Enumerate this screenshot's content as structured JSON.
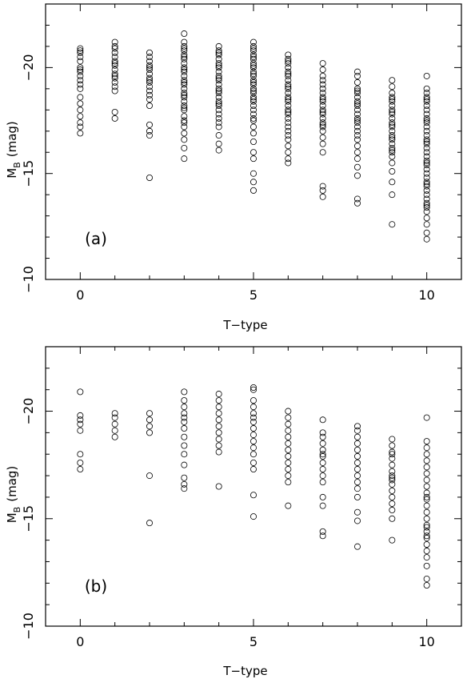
{
  "chart_data": [
    {
      "type": "scatter",
      "panel_label": "(a)",
      "xlabel": "T−type",
      "ylabel_main": "M",
      "ylabel_sub": "B",
      "ylabel_unit": "(mag)",
      "xlim": [
        -1,
        11
      ],
      "ylim": [
        -10,
        -23
      ],
      "xticks": [
        0,
        5,
        10
      ],
      "yticks": [
        -20,
        -15,
        -10
      ],
      "xtick_labels": [
        "0",
        "5",
        "10"
      ],
      "ytick_labels": [
        "−20",
        "−15",
        "−10"
      ],
      "minor_step_x": 1,
      "minor_step_y": 1,
      "grid": false,
      "points": [
        {
          "x": 0,
          "y": [
            -20.9,
            -20.8,
            -20.5,
            -20.3,
            -20.0,
            -19.9,
            -19.6,
            -19.4,
            -19.2,
            -19.0,
            -18.6,
            -18.3,
            -18.0,
            -17.7,
            -17.4,
            -17.2,
            -16.9,
            -20.7,
            -19.8
          ]
        },
        {
          "x": 1,
          "y": [
            -21.2,
            -21.0,
            -20.7,
            -20.5,
            -20.3,
            -20.1,
            -19.9,
            -19.7,
            -19.5,
            -19.3,
            -19.1,
            -18.9,
            -17.9,
            -17.6,
            -20.9,
            -20.2,
            -19.6
          ]
        },
        {
          "x": 2,
          "y": [
            -20.7,
            -20.5,
            -20.3,
            -20.1,
            -19.9,
            -19.7,
            -19.5,
            -19.3,
            -19.1,
            -18.9,
            -18.7,
            -18.5,
            -18.2,
            -17.3,
            -17.0,
            -16.8,
            -14.8,
            -20.0,
            -19.4
          ]
        },
        {
          "x": 3,
          "y": [
            -21.6,
            -21.2,
            -21.0,
            -20.8,
            -20.6,
            -20.4,
            -20.2,
            -20.0,
            -19.8,
            -19.6,
            -19.4,
            -19.2,
            -19.0,
            -18.8,
            -18.6,
            -18.4,
            -18.2,
            -18.0,
            -17.7,
            -17.5,
            -17.2,
            -16.9,
            -16.6,
            -16.2,
            -15.7,
            -20.9,
            -20.5,
            -19.9,
            -19.3,
            -18.7,
            -18.1,
            -17.4
          ]
        },
        {
          "x": 4,
          "y": [
            -21.0,
            -20.8,
            -20.6,
            -20.4,
            -20.2,
            -20.0,
            -19.8,
            -19.6,
            -19.4,
            -19.2,
            -19.0,
            -18.8,
            -18.6,
            -18.4,
            -18.2,
            -18.0,
            -17.8,
            -17.6,
            -17.2,
            -16.8,
            -16.4,
            -16.1,
            -20.7,
            -20.1,
            -19.5,
            -18.9,
            -18.3,
            -17.4
          ]
        },
        {
          "x": 5,
          "y": [
            -21.2,
            -21.0,
            -20.8,
            -20.6,
            -20.4,
            -20.2,
            -20.0,
            -19.8,
            -19.6,
            -19.4,
            -19.2,
            -19.0,
            -18.8,
            -18.6,
            -18.4,
            -18.2,
            -18.0,
            -17.8,
            -17.5,
            -17.2,
            -16.9,
            -16.5,
            -16.0,
            -15.7,
            -15.0,
            -14.6,
            -14.2,
            -20.9,
            -20.5,
            -20.1,
            -19.7,
            -19.3,
            -18.9,
            -18.5,
            -17.6
          ]
        },
        {
          "x": 6,
          "y": [
            -20.6,
            -20.4,
            -20.2,
            -20.0,
            -19.8,
            -19.6,
            -19.4,
            -19.2,
            -19.0,
            -18.8,
            -18.6,
            -18.4,
            -18.2,
            -18.0,
            -17.8,
            -17.6,
            -17.4,
            -17.2,
            -17.0,
            -16.8,
            -16.6,
            -16.3,
            -16.0,
            -15.7,
            -15.5,
            -20.3,
            -19.7,
            -19.1,
            -18.5,
            -17.9
          ]
        },
        {
          "x": 7,
          "y": [
            -20.2,
            -19.9,
            -19.6,
            -19.4,
            -19.2,
            -19.0,
            -18.8,
            -18.6,
            -18.4,
            -18.2,
            -18.0,
            -17.8,
            -17.6,
            -17.4,
            -17.2,
            -17.0,
            -16.7,
            -16.4,
            -16.0,
            -14.4,
            -14.2,
            -13.9,
            -18.5,
            -17.9,
            -17.3
          ]
        },
        {
          "x": 8,
          "y": [
            -19.8,
            -19.6,
            -19.3,
            -19.0,
            -18.8,
            -18.6,
            -18.4,
            -18.2,
            -18.0,
            -17.8,
            -17.6,
            -17.4,
            -17.2,
            -17.0,
            -16.8,
            -16.6,
            -16.3,
            -16.0,
            -15.7,
            -15.3,
            -14.9,
            -13.8,
            -13.6,
            -18.9,
            -18.3,
            -17.5
          ]
        },
        {
          "x": 9,
          "y": [
            -19.4,
            -19.1,
            -18.8,
            -18.6,
            -18.4,
            -18.2,
            -18.0,
            -17.8,
            -17.6,
            -17.4,
            -17.2,
            -17.0,
            -16.8,
            -16.6,
            -16.4,
            -16.2,
            -16.0,
            -15.8,
            -15.5,
            -15.1,
            -14.6,
            -14.0,
            -12.6,
            -18.5,
            -17.9,
            -17.3,
            -16.7,
            -16.1
          ]
        },
        {
          "x": 10,
          "y": [
            -19.6,
            -19.0,
            -18.8,
            -18.6,
            -18.4,
            -18.2,
            -18.0,
            -17.8,
            -17.6,
            -17.4,
            -17.2,
            -17.0,
            -16.8,
            -16.6,
            -16.4,
            -16.2,
            -16.0,
            -15.8,
            -15.6,
            -15.4,
            -15.2,
            -15.0,
            -14.8,
            -14.6,
            -14.4,
            -14.2,
            -14.0,
            -13.8,
            -13.6,
            -13.4,
            -13.2,
            -12.9,
            -12.6,
            -12.2,
            -11.9,
            -18.5,
            -17.5,
            -16.5,
            -15.5,
            -14.5,
            -13.5
          ]
        }
      ]
    },
    {
      "type": "scatter",
      "panel_label": "(b)",
      "xlabel": "T−type",
      "ylabel_main": "M",
      "ylabel_sub": "B",
      "ylabel_unit": "(mag)",
      "xlim": [
        -1,
        11
      ],
      "ylim": [
        -10,
        -23
      ],
      "xticks": [
        0,
        5,
        10
      ],
      "yticks": [
        -20,
        -15,
        -10
      ],
      "xtick_labels": [
        "0",
        "5",
        "10"
      ],
      "ytick_labels": [
        "−20",
        "−15",
        "−10"
      ],
      "minor_step_x": 1,
      "minor_step_y": 1,
      "grid": false,
      "points": [
        {
          "x": 0,
          "y": [
            -20.9,
            -19.8,
            -19.6,
            -19.4,
            -19.1,
            -18.0,
            -17.6,
            -17.3
          ]
        },
        {
          "x": 1,
          "y": [
            -19.9,
            -19.7,
            -19.4,
            -19.1,
            -18.8
          ]
        },
        {
          "x": 2,
          "y": [
            -19.9,
            -19.6,
            -19.3,
            -19.0,
            -17.0,
            -14.8
          ]
        },
        {
          "x": 3,
          "y": [
            -20.9,
            -20.5,
            -20.2,
            -19.9,
            -19.7,
            -19.5,
            -19.2,
            -18.8,
            -18.4,
            -18.0,
            -17.5,
            -16.9,
            -16.6,
            -16.4
          ]
        },
        {
          "x": 4,
          "y": [
            -20.8,
            -20.5,
            -20.2,
            -19.9,
            -19.6,
            -19.3,
            -19.0,
            -18.7,
            -18.4,
            -18.1,
            -16.5
          ]
        },
        {
          "x": 5,
          "y": [
            -21.1,
            -21.0,
            -20.5,
            -20.2,
            -19.9,
            -19.7,
            -19.5,
            -19.2,
            -18.9,
            -18.6,
            -18.3,
            -18.0,
            -17.6,
            -17.3,
            -16.1,
            -15.1
          ]
        },
        {
          "x": 6,
          "y": [
            -20.0,
            -19.7,
            -19.4,
            -19.1,
            -18.8,
            -18.5,
            -18.2,
            -17.9,
            -17.6,
            -17.3,
            -17.0,
            -16.7,
            -15.6
          ]
        },
        {
          "x": 7,
          "y": [
            -19.6,
            -19.0,
            -18.8,
            -18.5,
            -18.2,
            -17.9,
            -17.6,
            -17.3,
            -17.0,
            -16.7,
            -16.0,
            -15.6,
            -14.4,
            -14.2,
            -18.0
          ]
        },
        {
          "x": 8,
          "y": [
            -19.3,
            -19.1,
            -18.8,
            -18.5,
            -18.2,
            -17.9,
            -17.6,
            -17.3,
            -17.0,
            -16.7,
            -16.4,
            -16.0,
            -15.3,
            -14.9,
            -13.7
          ]
        },
        {
          "x": 9,
          "y": [
            -18.7,
            -18.4,
            -18.1,
            -17.8,
            -17.5,
            -17.2,
            -16.9,
            -16.6,
            -16.3,
            -16.0,
            -15.7,
            -15.4,
            -15.0,
            -14.0,
            -18.0,
            -17.0,
            -16.8
          ]
        },
        {
          "x": 10,
          "y": [
            -19.7,
            -18.6,
            -18.3,
            -18.0,
            -17.7,
            -17.4,
            -17.1,
            -16.8,
            -16.5,
            -16.2,
            -15.9,
            -15.6,
            -15.3,
            -15.0,
            -14.7,
            -14.4,
            -14.1,
            -13.8,
            -13.5,
            -13.2,
            -12.8,
            -12.2,
            -11.9,
            -16.0,
            -14.2,
            -14.6
          ]
        }
      ]
    }
  ]
}
